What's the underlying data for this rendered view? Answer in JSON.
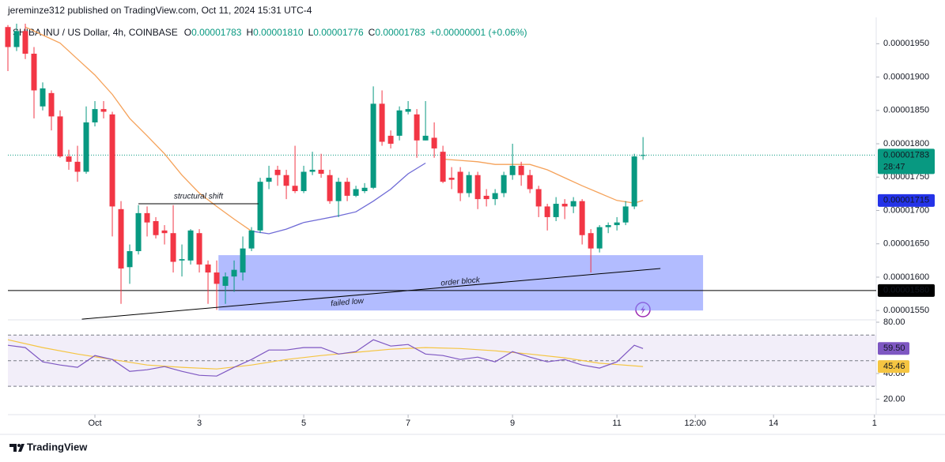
{
  "header": {
    "byline": "jereminze312 published on TradingView.com, Oct 11, 2024 15:31 UTC-4",
    "symbol": "SHIBA INU / US Dollar, 4h, COINBASE",
    "ohlc": [
      {
        "key": "O",
        "value": "0.00001783"
      },
      {
        "key": "H",
        "value": "0.00001810"
      },
      {
        "key": "L",
        "value": "0.00001776"
      },
      {
        "key": "C",
        "value": "0.00001783"
      }
    ],
    "change": "+0.00000001 (+0.06%)"
  },
  "chart_data": {
    "type": "candlestick",
    "x": [
      -10,
      -9,
      -8,
      -7,
      -6,
      -5,
      -4,
      -3,
      -2,
      -1,
      0,
      1,
      2,
      3,
      4,
      5,
      6,
      7,
      8,
      9,
      10,
      11,
      12,
      13,
      14,
      15,
      16,
      17,
      18,
      19,
      20,
      21,
      22,
      23,
      24,
      25,
      26,
      27,
      28,
      29,
      30,
      31,
      32,
      33,
      34,
      35,
      36,
      37,
      38,
      39,
      40,
      41,
      42,
      43,
      44,
      45,
      46,
      47,
      48,
      49,
      50,
      51,
      52,
      53,
      54,
      55,
      56,
      57,
      58,
      59,
      60,
      61,
      62,
      63
    ],
    "open": [
      1.975e-05,
      1.945e-05,
      1.969e-05,
      1.935e-05,
      1.856e-05,
      1.876e-05,
      1.841e-05,
      1.781e-05,
      1.773e-05,
      1.758e-05,
      1.832e-05,
      1.852e-05,
      1.844e-05,
      1.702e-05,
      1.615e-05,
      1.639e-05,
      1.696e-05,
      1.684e-05,
      1.67e-05,
      1.666e-05,
      1.625e-05,
      1.625e-05,
      1.666e-05,
      1.619e-05,
      1.607e-05,
      1.587e-05,
      1.601e-05,
      1.607e-05,
      1.643e-05,
      1.67e-05,
      1.743e-05,
      1.761e-05,
      1.753e-05,
      1.737e-05,
      1.729e-05,
      1.758e-05,
      1.761e-05,
      1.753e-05,
      1.714e-05,
      1.743e-05,
      1.722e-05,
      1.729e-05,
      1.734e-05,
      1.86e-05,
      1.812e-05,
      1.812e-05,
      1.848e-05,
      1.844e-05,
      1.805e-05,
      1.809e-05,
      1.788e-05,
      1.749e-05,
      1.758e-05,
      1.726e-05,
      1.753e-05,
      1.722e-05,
      1.717e-05,
      1.726e-05,
      1.753e-05,
      1.767e-05,
      1.753e-05,
      1.732e-05,
      1.706e-05,
      1.69e-05,
      1.71e-05,
      1.706e-05,
      1.714e-05,
      1.666e-05,
      1.643e-05,
      1.675e-05,
      1.678e-05,
      1.682e-05,
      1.706e-05,
      1.783e-05
    ],
    "high": [
      1.978e-05,
      1.98e-05,
      1.98e-05,
      1.945e-05,
      1.892e-05,
      1.88e-05,
      1.85e-05,
      1.791e-05,
      1.797e-05,
      1.856e-05,
      1.864e-05,
      1.864e-05,
      1.848e-05,
      1.714e-05,
      1.649e-05,
      1.708e-05,
      1.706e-05,
      1.69e-05,
      1.678e-05,
      1.708e-05,
      1.649e-05,
      1.672e-05,
      1.672e-05,
      1.625e-05,
      1.625e-05,
      1.607e-05,
      1.625e-05,
      1.661e-05,
      1.675e-05,
      1.749e-05,
      1.767e-05,
      1.767e-05,
      1.761e-05,
      1.797e-05,
      1.767e-05,
      1.788e-05,
      1.785e-05,
      1.761e-05,
      1.749e-05,
      1.749e-05,
      1.737e-05,
      1.741e-05,
      1.886e-05,
      1.88e-05,
      1.82e-05,
      1.856e-05,
      1.864e-05,
      1.852e-05,
      1.864e-05,
      1.832e-05,
      1.797e-05,
      1.765e-05,
      1.765e-05,
      1.758e-05,
      1.758e-05,
      1.732e-05,
      1.732e-05,
      1.758e-05,
      1.8e-05,
      1.773e-05,
      1.761e-05,
      1.737e-05,
      1.71e-05,
      1.72e-05,
      1.717e-05,
      1.72e-05,
      1.717e-05,
      1.672e-05,
      1.678e-05,
      1.682e-05,
      1.69e-05,
      1.714e-05,
      1.785e-05,
      1.81e-05
    ],
    "low": [
      1.909e-05,
      1.939e-05,
      1.927e-05,
      1.838e-05,
      1.85e-05,
      1.82e-05,
      1.779e-05,
      1.761e-05,
      1.743e-05,
      1.755e-05,
      1.826e-05,
      1.838e-05,
      1.661e-05,
      1.56e-05,
      1.59e-05,
      1.634e-05,
      1.661e-05,
      1.658e-05,
      1.649e-05,
      1.607e-05,
      1.601e-05,
      1.619e-05,
      1.607e-05,
      1.56e-05,
      1.551e-05,
      1.56e-05,
      1.578e-05,
      1.595e-05,
      1.639e-05,
      1.666e-05,
      1.732e-05,
      1.737e-05,
      1.717e-05,
      1.726e-05,
      1.726e-05,
      1.753e-05,
      1.749e-05,
      1.71e-05,
      1.69e-05,
      1.714e-05,
      1.72e-05,
      1.726e-05,
      1.732e-05,
      1.797e-05,
      1.793e-05,
      1.805e-05,
      1.844e-05,
      1.779e-05,
      1.805e-05,
      1.779e-05,
      1.741e-05,
      1.732e-05,
      1.714e-05,
      1.72e-05,
      1.702e-05,
      1.706e-05,
      1.708e-05,
      1.72e-05,
      1.746e-05,
      1.737e-05,
      1.726e-05,
      1.69e-05,
      1.67e-05,
      1.684e-05,
      1.687e-05,
      1.696e-05,
      1.649e-05,
      1.607e-05,
      1.637e-05,
      1.666e-05,
      1.67e-05,
      1.678e-05,
      1.702e-05,
      1.776e-05
    ],
    "close": [
      1.945e-05,
      1.969e-05,
      1.935e-05,
      1.88e-05,
      1.883e-05,
      1.841e-05,
      1.781e-05,
      1.773e-05,
      1.758e-05,
      1.832e-05,
      1.852e-05,
      1.848e-05,
      1.706e-05,
      1.613e-05,
      1.639e-05,
      1.696e-05,
      1.682e-05,
      1.663e-05,
      1.666e-05,
      1.623e-05,
      1.627e-05,
      1.67e-05,
      1.619e-05,
      1.607e-05,
      1.59e-05,
      1.601e-05,
      1.611e-05,
      1.643e-05,
      1.67e-05,
      1.743e-05,
      1.749e-05,
      1.753e-05,
      1.737e-05,
      1.729e-05,
      1.758e-05,
      1.761e-05,
      1.755e-05,
      1.714e-05,
      1.743e-05,
      1.722e-05,
      1.732e-05,
      1.734e-05,
      1.86e-05,
      1.803e-05,
      1.8e-05,
      1.85e-05,
      1.852e-05,
      1.805e-05,
      1.812e-05,
      1.793e-05,
      1.743e-05,
      1.746e-05,
      1.726e-05,
      1.753e-05,
      1.717e-05,
      1.717e-05,
      1.726e-05,
      1.753e-05,
      1.767e-05,
      1.753e-05,
      1.732e-05,
      1.706e-05,
      1.69e-05,
      1.71e-05,
      1.706e-05,
      1.714e-05,
      1.663e-05,
      1.643e-05,
      1.675e-05,
      1.678e-05,
      1.682e-05,
      1.706e-05,
      1.781e-05,
      1.783e-05
    ],
    "up_color": "#089981",
    "down_color": "#f23645",
    "xlim": [
      -10,
      89.8
    ],
    "xticks": [
      {
        "value": 0,
        "label": "Oct"
      },
      {
        "value": 12,
        "label": "3"
      },
      {
        "value": 24,
        "label": "5"
      },
      {
        "value": 36,
        "label": "7"
      },
      {
        "value": 48,
        "label": "9"
      },
      {
        "value": 60,
        "label": "11"
      },
      {
        "value": 69,
        "label": "12:00"
      },
      {
        "value": 78,
        "label": "14"
      },
      {
        "value": 89.6,
        "label": "1"
      }
    ],
    "ylim": [
      1.536e-05,
      1.98e-05
    ],
    "yticks": [
      {
        "value": 1.95e-05,
        "label": "0.00001950"
      },
      {
        "value": 1.9e-05,
        "label": "0.00001900"
      },
      {
        "value": 1.85e-05,
        "label": "0.00001850"
      },
      {
        "value": 1.8e-05,
        "label": "0.00001800"
      },
      {
        "value": 1.75e-05,
        "label": "0.00001750"
      },
      {
        "value": 1.7e-05,
        "label": "0.00001700"
      },
      {
        "value": 1.65e-05,
        "label": "0.00001650"
      },
      {
        "value": 1.6e-05,
        "label": "0.00001600"
      },
      {
        "value": 1.55e-05,
        "label": "0.00001550"
      }
    ],
    "line_x": [
      -8,
      -6,
      -4,
      -2,
      0,
      2,
      4,
      6,
      8,
      10,
      12,
      14,
      16,
      18,
      20,
      22,
      24,
      26,
      28,
      30,
      32,
      34,
      36,
      38,
      40,
      42,
      44,
      46,
      48,
      50,
      52,
      54,
      56,
      58,
      60,
      62,
      63
    ],
    "lines": [
      {
        "color": "#f5a25a",
        "values": [
          1.975e-05,
          1.963e-05,
          1.951e-05,
          1.927e-05,
          1.903e-05,
          1.874e-05,
          1.838e-05,
          1.812e-05,
          1.785e-05,
          1.753e-05,
          1.726e-05,
          1.706e-05,
          1.687e-05,
          1.669e-05,
          null,
          null,
          null,
          null,
          null,
          null,
          null,
          null,
          null,
          null,
          1.777e-05,
          1.775e-05,
          1.773e-05,
          1.769e-05,
          1.769e-05,
          1.769e-05,
          1.761e-05,
          1.749e-05,
          1.737e-05,
          1.726e-05,
          1.715e-05,
          1.711e-05,
          1.715e-05
        ]
      },
      {
        "color": "#6f6bd6",
        "values": [
          null,
          null,
          null,
          null,
          null,
          null,
          null,
          null,
          null,
          null,
          null,
          null,
          null,
          1.669e-05,
          1.665e-05,
          1.672e-05,
          1.682e-05,
          1.687e-05,
          1.692e-05,
          1.698e-05,
          1.714e-05,
          1.732e-05,
          1.755e-05,
          1.771e-05,
          null,
          null,
          null,
          null,
          null,
          null,
          null,
          null,
          null,
          null,
          null,
          null,
          null
        ]
      }
    ],
    "price_labels": [
      {
        "value": 1.783e-05,
        "label": "0.00001783",
        "countdown": "28:47",
        "color": "#089981"
      },
      {
        "value": 1.715e-05,
        "label": "0.00001715",
        "color": "#2433e8"
      },
      {
        "value": 1.58e-05,
        "label": "0.00001580",
        "color": "#000000"
      }
    ],
    "drawings": {
      "shift": {
        "label": "structural shift",
        "x": [
          5,
          18.8
        ],
        "y": 1.71e-05
      },
      "zone": {
        "x": [
          14.2,
          69.9
        ],
        "y": [
          1.55e-05,
          1.633e-05
        ],
        "color": "#7f90ff"
      },
      "trend": {
        "x": [
          -1.5,
          65
        ],
        "y": [
          1.537e-05,
          1.613e-05
        ]
      },
      "order_block": {
        "label": "order block",
        "x": 42,
        "y": 1.593e-05
      },
      "failed_low": {
        "label": "failed low",
        "x": 29,
        "y": 1.562e-05
      }
    },
    "rsi": {
      "ylim": [
        11,
        80
      ],
      "yticks": [
        {
          "value": 80,
          "label": "80.00"
        },
        {
          "value": 40,
          "label": "40.00"
        },
        {
          "value": 20,
          "label": "20.00"
        }
      ],
      "band": [
        30,
        70
      ],
      "midline": 50,
      "band_color": "#7e57c2",
      "x": [
        -10,
        -8,
        -6,
        -4,
        -2,
        0,
        2,
        4,
        6,
        8,
        10,
        12,
        14,
        16,
        18,
        20,
        22,
        24,
        26,
        28,
        30,
        32,
        34,
        36,
        38,
        40,
        42,
        44,
        46,
        48,
        50,
        52,
        54,
        56,
        58,
        60,
        62,
        63
      ],
      "values": [
        62.0,
        60.2,
        49.1,
        46.6,
        44.8,
        54.0,
        50.9,
        41.7,
        42.9,
        45.4,
        41.7,
        38.6,
        38.0,
        44.8,
        50.9,
        58.3,
        58.3,
        60.2,
        60.2,
        55.2,
        57.1,
        66.3,
        61.4,
        62.6,
        55.2,
        54.0,
        50.9,
        52.8,
        49.1,
        57.1,
        52.8,
        49.1,
        50.9,
        46.6,
        44.2,
        49.1,
        62.0,
        59.5
      ],
      "color": "#7e57c2",
      "last_label": "59.50",
      "ma": {
        "x": [
          -10,
          -6,
          -2,
          2,
          6,
          10,
          14,
          18,
          22,
          26,
          30,
          34,
          38,
          42,
          46,
          50,
          54,
          58,
          63
        ],
        "values": [
          66.3,
          60.2,
          55.2,
          50.9,
          46.6,
          44.8,
          43.5,
          46.6,
          50.9,
          54.0,
          56.5,
          58.9,
          60.2,
          59.5,
          57.7,
          55.2,
          52.2,
          48.0,
          45.46
        ],
        "color": "#f5c542"
      }
    }
  },
  "footer": {
    "brand": "TradingView"
  }
}
